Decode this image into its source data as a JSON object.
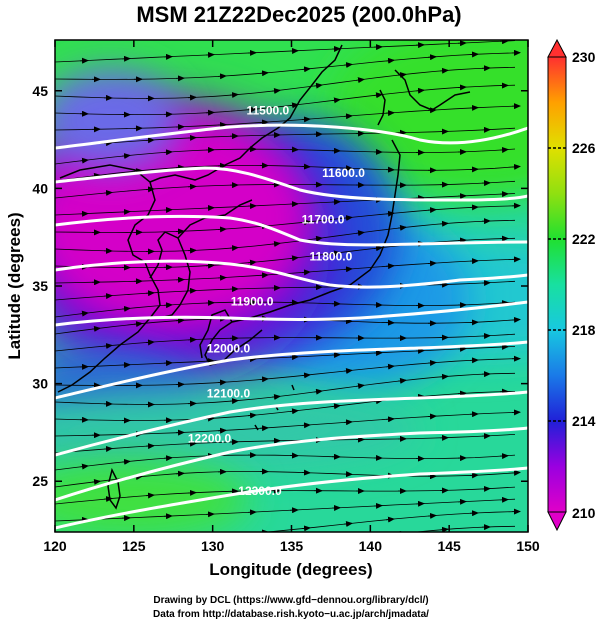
{
  "title": "MSM 21Z22Dec2025 (200.0hPa)",
  "x_axis": {
    "label": "Longitude (degrees)",
    "ticks": [
      120,
      125,
      130,
      135,
      140,
      145,
      150
    ],
    "range": [
      120,
      150
    ]
  },
  "y_axis": {
    "label": "Latitude  (degrees)",
    "ticks": [
      25,
      30,
      35,
      40,
      45
    ],
    "range": [
      22.4,
      47.6
    ]
  },
  "colorbar": {
    "ticks": [
      210,
      214,
      218,
      222,
      226,
      230
    ],
    "range": [
      210,
      230
    ],
    "colors": [
      "#e000c8",
      "#9a00e0",
      "#2020d8",
      "#1a7ae8",
      "#18c8e0",
      "#18e0a0",
      "#20e030",
      "#90e010",
      "#e0e000",
      "#ffa000",
      "#ff3030"
    ]
  },
  "contours": [
    {
      "label": "11500.0",
      "lon": 133.5,
      "lat": 44.0
    },
    {
      "label": "11600.0",
      "lon": 138.3,
      "lat": 40.8
    },
    {
      "label": "11700.0",
      "lon": 137.0,
      "lat": 38.4
    },
    {
      "label": "11800.0",
      "lon": 137.5,
      "lat": 36.5
    },
    {
      "label": "11900.0",
      "lon": 132.5,
      "lat": 34.2
    },
    {
      "label": "12000.0",
      "lon": 131.0,
      "lat": 31.8
    },
    {
      "label": "12100.0",
      "lon": 131.0,
      "lat": 29.5
    },
    {
      "label": "12200.0",
      "lon": 129.8,
      "lat": 27.2
    },
    {
      "label": "12300.0",
      "lon": 133.0,
      "lat": 24.5
    }
  ],
  "credits": {
    "line1": "Drawing by DCL (https://www.gfd−dennou.org/library/dcl/)",
    "line2": "Data from http://database.rish.kyoto−u.ac.jp/arch/jmadata/"
  }
}
